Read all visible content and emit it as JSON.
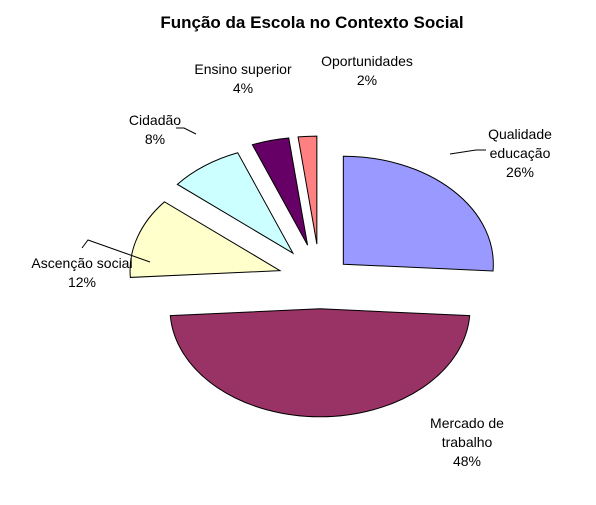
{
  "chart_data": {
    "type": "pie",
    "title": "Função da Escola no Contexto Social",
    "exploded": true,
    "legend": "none",
    "slices": [
      {
        "label_lines": [
          "Qualidade",
          "educação"
        ],
        "value_label": "26%",
        "value": 26,
        "color": "#9999ff"
      },
      {
        "label_lines": [
          "Mercado de",
          "trabalho"
        ],
        "value_label": "48%",
        "value": 48,
        "color": "#993366"
      },
      {
        "label_lines": [
          "Ascenção social"
        ],
        "value_label": "12%",
        "value": 12,
        "color": "#ffffcc"
      },
      {
        "label_lines": [
          "Cidadão"
        ],
        "value_label": "8%",
        "value": 8,
        "color": "#ccffff"
      },
      {
        "label_lines": [
          "Ensino superior"
        ],
        "value_label": "4%",
        "value": 4,
        "color": "#660066"
      },
      {
        "label_lines": [
          "Oportunidades"
        ],
        "value_label": "2%",
        "value": 2,
        "color": "#ff8080"
      }
    ]
  }
}
